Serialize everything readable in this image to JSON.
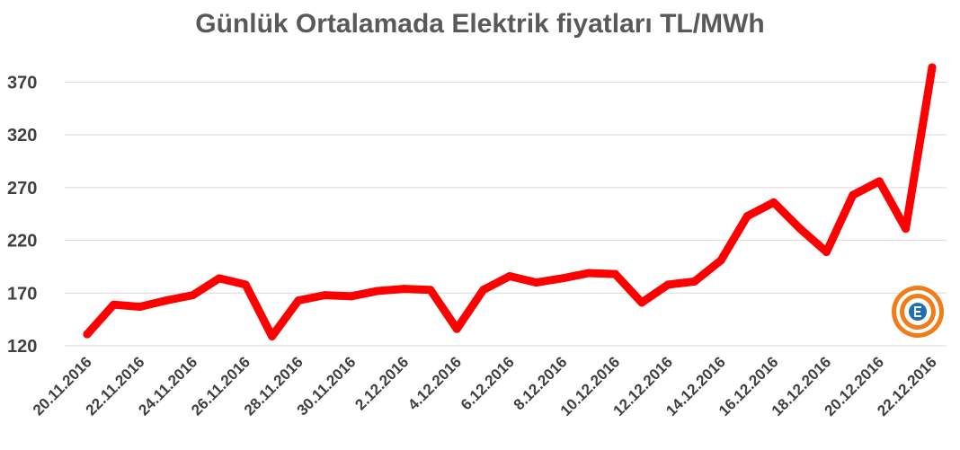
{
  "chart_data": {
    "type": "line",
    "title": "Günlük Ortalamada Elektrik fiyatları TL/MWh",
    "xlabel": "",
    "ylabel": "",
    "ylim": [
      120,
      390
    ],
    "yticks": [
      120,
      170,
      220,
      270,
      320,
      370
    ],
    "x": [
      "20.11.2016",
      "21.11.2016",
      "22.11.2016",
      "23.11.2016",
      "24.11.2016",
      "25.11.2016",
      "26.11.2016",
      "27.11.2016",
      "28.11.2016",
      "29.11.2016",
      "30.11.2016",
      "1.12.2016",
      "2.12.2016",
      "3.12.2016",
      "4.12.2016",
      "5.12.2016",
      "6.12.2016",
      "7.12.2016",
      "8.12.2016",
      "9.12.2016",
      "10.12.2016",
      "11.12.2016",
      "12.12.2016",
      "13.12.2016",
      "14.12.2016",
      "15.12.2016",
      "16.12.2016",
      "17.12.2016",
      "18.12.2016",
      "19.12.2016",
      "20.12.2016",
      "21.12.2016",
      "22.12.2016"
    ],
    "x_tick_labels": [
      "20.11.2016",
      "22.11.2016",
      "24.11.2016",
      "26.11.2016",
      "28.11.2016",
      "30.11.2016",
      "2.12.2016",
      "4.12.2016",
      "6.12.2016",
      "8.12.2016",
      "10.12.2016",
      "12.12.2016",
      "14.12.2016",
      "16.12.2016",
      "18.12.2016",
      "20.12.2016",
      "22.12.2016"
    ],
    "series": [
      {
        "color": "#ff0000",
        "values": [
          131,
          159,
          157,
          163,
          168,
          184,
          178,
          129,
          163,
          168,
          167,
          172,
          174,
          173,
          136,
          173,
          186,
          180,
          184,
          189,
          188,
          161,
          178,
          181,
          201,
          243,
          256,
          231,
          209,
          263,
          276,
          231,
          384
        ]
      }
    ],
    "grid": true,
    "legend": "none",
    "logo": "orange-emblem-icon"
  }
}
